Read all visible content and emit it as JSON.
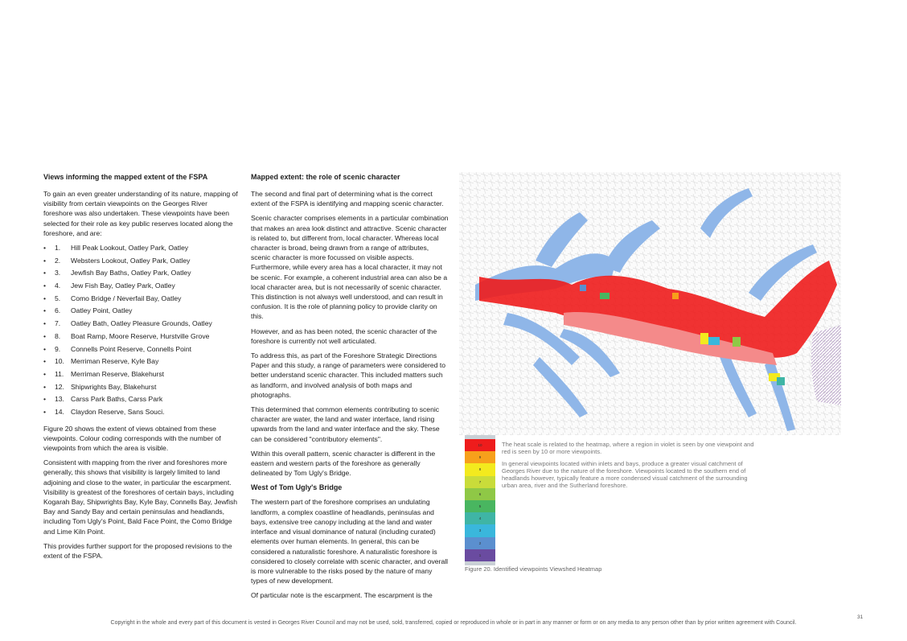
{
  "col1": {
    "heading": "Views informing the mapped extent of the FSPA",
    "intro": "To gain an even greater understanding of its nature, mapping of visibility from certain viewpoints on the Georges River foreshore was also undertaken. These viewpoints have been selected for their role as key public reserves located along the foreshore, and are:",
    "viewpoints": [
      {
        "num": "1.",
        "name": "Hill Peak Lookout, Oatley Park, Oatley"
      },
      {
        "num": "2.",
        "name": "Websters Lookout, Oatley Park, Oatley"
      },
      {
        "num": "3.",
        "name": "Jewfish Bay Baths, Oatley Park, Oatley"
      },
      {
        "num": "4.",
        "name": "Jew Fish Bay, Oatley Park, Oatley"
      },
      {
        "num": "5.",
        "name": "Como Bridge / Neverfail Bay, Oatley"
      },
      {
        "num": "6.",
        "name": "Oatley Point, Oatley"
      },
      {
        "num": "7.",
        "name": "Oatley Bath, Oatley Pleasure Grounds, Oatley"
      },
      {
        "num": "8.",
        "name": "Boat Ramp, Moore Reserve, Hurstville Grove"
      },
      {
        "num": "9.",
        "name": "Connells Point Reserve, Connells Point"
      },
      {
        "num": "10.",
        "name": "Merriman Reserve, Kyle Bay"
      },
      {
        "num": "11.",
        "name": "Merriman Reserve, Blakehurst"
      },
      {
        "num": "12.",
        "name": "Shipwrights Bay, Blakehurst"
      },
      {
        "num": "13.",
        "name": "Carss Park Baths, Carss Park"
      },
      {
        "num": "14.",
        "name": "Claydon Reserve, Sans Souci."
      }
    ],
    "bullet": "•",
    "para_fig": "Figure 20 shows the extent of views obtained from these viewpoints. Colour coding corresponds with the number of viewpoints from which the area is visible.",
    "para_consistent": "Consistent with mapping from the river and foreshores more generally, this shows that visibility is largely limited to land adjoining and close to the water, in particular the escarpment. Visibility is greatest of the foreshores of certain bays, including Kogarah Bay, Shipwrights Bay, Kyle Bay, Connells Bay, Jewfish Bay and Sandy Bay and certain peninsulas and headlands, including Tom Ugly's Point, Bald Face Point, the Como Bridge and Lime Kiln Point.",
    "para_support": "This provides further support for the proposed revisions to the extent of the FSPA."
  },
  "col2": {
    "heading": "Mapped extent: the role of scenic character",
    "p1": "The second and final part of determining what is the correct extent of the FSPA is identifying and mapping scenic character.",
    "p2": "Scenic character comprises elements in a particular combination that makes an area look distinct and attractive. Scenic character is related to, but different from, local character. Whereas local character is broad, being drawn from a range of attributes, scenic character is more focussed on visible aspects. Furthermore, while every area has a local character, it may not be scenic. For example, a coherent industrial area can also be a local character area, but is not necessarily of scenic character. This distinction is not always well understood, and can result in confusion. It is the role of planning policy to provide clarity on this.",
    "p3": "However, and as has been noted, the scenic character of the foreshore is currently not well articulated.",
    "p4": "To address this, as part of the Foreshore Strategic Directions Paper and this study, a range of parameters were considered to better understand scenic character. This included matters such as landform, and involved analysis of both maps and photographs.",
    "p5": "This determined that common elements contributing to scenic character are water, the land and water interface, land rising upwards from the land and water interface and the sky. These can be considered \"contributory elements\".",
    "p6": "Within this overall pattern, scenic character is different in the eastern and western parts of the foreshore as generally delineated by Tom Ugly's Bridge.",
    "subheading": "West of Tom Ugly's Bridge",
    "p7": "The western part of the foreshore comprises an undulating landform, a complex coastline of headlands, peninsulas and bays, extensive tree canopy including at the land and water interface and visual dominance of natural (including curated) elements over human elements. In general, this can be considered a naturalistic foreshore. A naturalistic foreshore is considered to closely correlate with scenic character, and overall is more vulnerable to the risks posed by the nature of many types of new development.",
    "p8": "Of particular note is the escarpment. The escarpment is the"
  },
  "legend": {
    "items": [
      {
        "label": "10",
        "color": "#ee1c1c"
      },
      {
        "label": "9",
        "color": "#f7a01b"
      },
      {
        "label": "8",
        "color": "#f3ea1e"
      },
      {
        "label": "7",
        "color": "#c9dc3a"
      },
      {
        "label": "6",
        "color": "#8fc846"
      },
      {
        "label": "5",
        "color": "#49b660"
      },
      {
        "label": "4",
        "color": "#3fb5a5"
      },
      {
        "label": "3",
        "color": "#3ab7dc"
      },
      {
        "label": "2",
        "color": "#5b8fcf"
      },
      {
        "label": "1",
        "color": "#6a4ba0"
      }
    ],
    "text1": "The heat scale is related to the heatmap, where a region in violet is seen by one viewpoint and red is seen by 10 or more viewpoints.",
    "text2": "In general viewpoints located within inlets and bays, produce a greater visual catchment of Georges River due to the nature of the foreshore. Viewpoints located to the southern end of headlands however, typically feature a more condensed visual catchment of the surrounding urban area, river and the Sutherland foreshore."
  },
  "figure_caption": "Figure 20. Identified viewpoints Viewshed Heatmap",
  "page_number": "31",
  "copyright": "Copyright in the whole and every part of this document is vested in Georges River Council and may not be used, sold, transferred, copied or reproduced in whole or in part in any manner or form or on any media to any person other than by prior written agreement with Council.",
  "colors": {
    "water": "#8fb6e8",
    "heat_red": "#ee1c1c",
    "heat_pink": "#f48a8a"
  }
}
